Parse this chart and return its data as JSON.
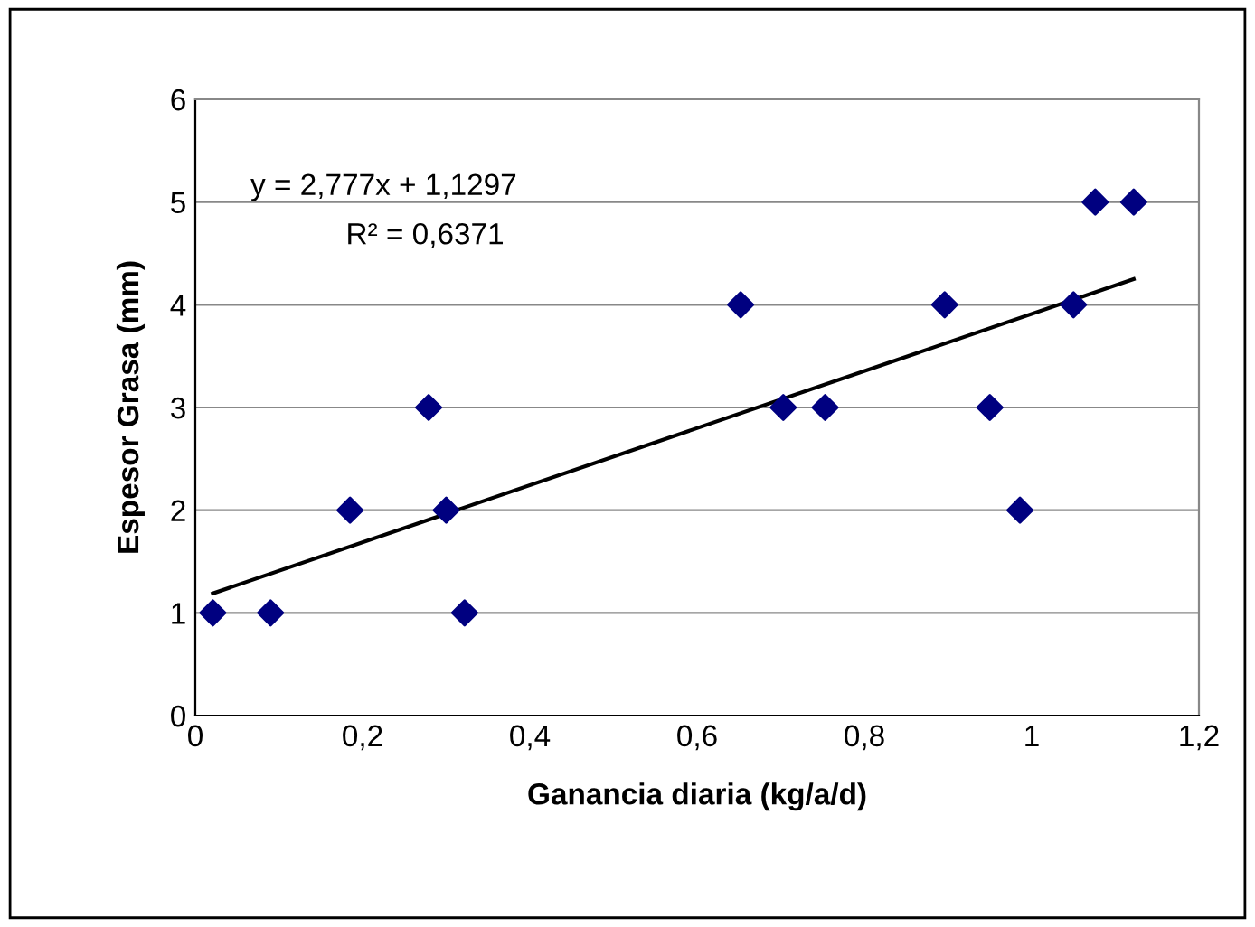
{
  "chart_data": {
    "type": "scatter",
    "xlabel": "Ganancia diaria (kg/a/d)",
    "ylabel": "Espesor Grasa (mm)",
    "x": [
      0.021,
      0.09,
      0.185,
      0.279,
      0.3,
      0.322,
      0.652,
      0.703,
      0.753,
      0.896,
      0.95,
      0.986,
      1.05,
      1.076,
      1.122
    ],
    "series": [
      {
        "color": "#000080",
        "marker": "diamond",
        "values": [
          1,
          1,
          2,
          3,
          2,
          1,
          4,
          3,
          3,
          4,
          3,
          2,
          4,
          5,
          5
        ]
      },
      {
        "type": "line",
        "color": "#000000",
        "marker": "none",
        "x": [
          0.021,
          1.122
        ],
        "values": [
          1.19,
          4.25
        ]
      }
    ],
    "annotations": [
      "y = 2,777x + 1,1297",
      "R² = 0,6371"
    ],
    "xlim": [
      0,
      1.2
    ],
    "xticks": [
      {
        "value": 0,
        "label": "0"
      },
      {
        "value": 0.2,
        "label": "0,2"
      },
      {
        "value": 0.4,
        "label": "0,4"
      },
      {
        "value": 0.6,
        "label": "0,6"
      },
      {
        "value": 0.8,
        "label": "0,8"
      },
      {
        "value": 1,
        "label": "1"
      },
      {
        "value": 1.2,
        "label": "1,2"
      }
    ],
    "ylim": [
      0,
      6
    ],
    "yticks": [
      0,
      1,
      2,
      3,
      4,
      5,
      6
    ],
    "grid": "y",
    "legend": false
  }
}
